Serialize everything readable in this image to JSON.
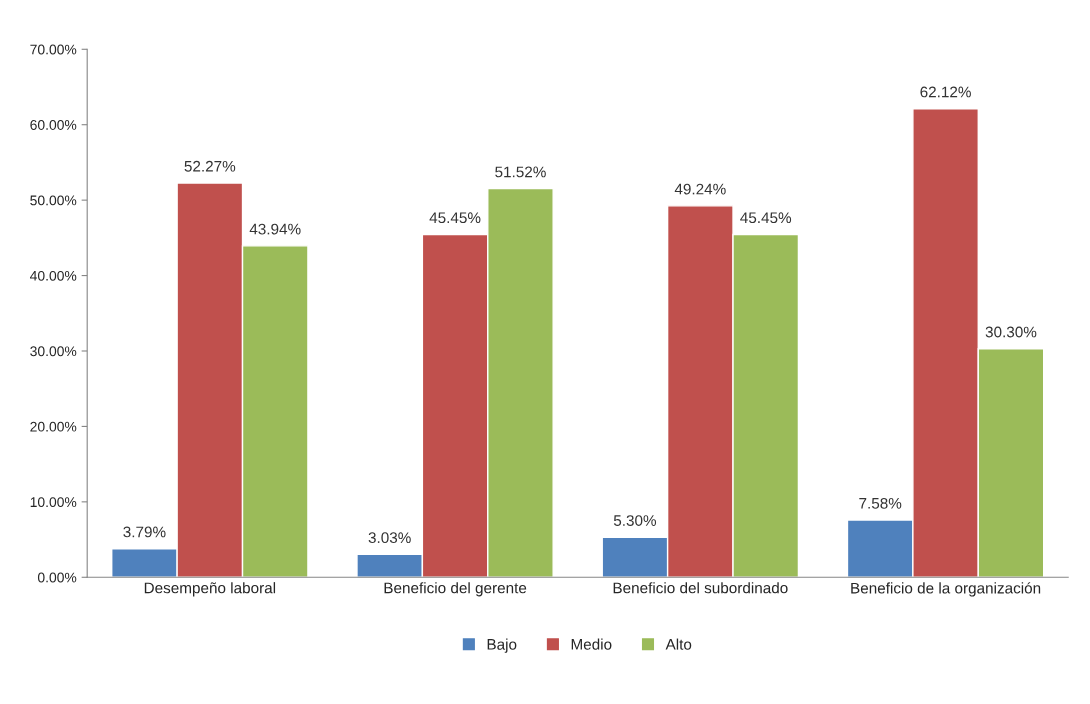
{
  "chart_data": {
    "type": "bar",
    "categories": [
      "Desempeño laboral",
      "Beneficio del gerente",
      "Beneficio del subordinado",
      "Beneficio de la organización"
    ],
    "series": [
      {
        "name": "Bajo",
        "color": "#4f81bd",
        "values": [
          3.79,
          3.03,
          5.3,
          7.58
        ],
        "value_labels": [
          "3.79%",
          "3.03%",
          "5.30%",
          "7.58%"
        ]
      },
      {
        "name": "Medio",
        "color": "#c0504d",
        "values": [
          52.27,
          45.45,
          49.24,
          62.12
        ],
        "value_labels": [
          "52.27%",
          "45.45%",
          "49.24%",
          "62.12%"
        ]
      },
      {
        "name": "Alto",
        "color": "#9bbb59",
        "values": [
          43.94,
          51.52,
          45.45,
          30.3
        ],
        "value_labels": [
          "43.94%",
          "51.52%",
          "45.45%",
          "30.30%"
        ]
      }
    ],
    "ylim": [
      0,
      70
    ],
    "yticks": [
      {
        "value": 0,
        "label": "0.00%"
      },
      {
        "value": 10,
        "label": "10.00%"
      },
      {
        "value": 20,
        "label": "20.00%"
      },
      {
        "value": 30,
        "label": "30.00%"
      },
      {
        "value": 40,
        "label": "40.00%"
      },
      {
        "value": 50,
        "label": "50.00%"
      },
      {
        "value": 60,
        "label": "60.00%"
      },
      {
        "value": 70,
        "label": "70.00%"
      }
    ],
    "grid": false,
    "legend": "bottom"
  }
}
